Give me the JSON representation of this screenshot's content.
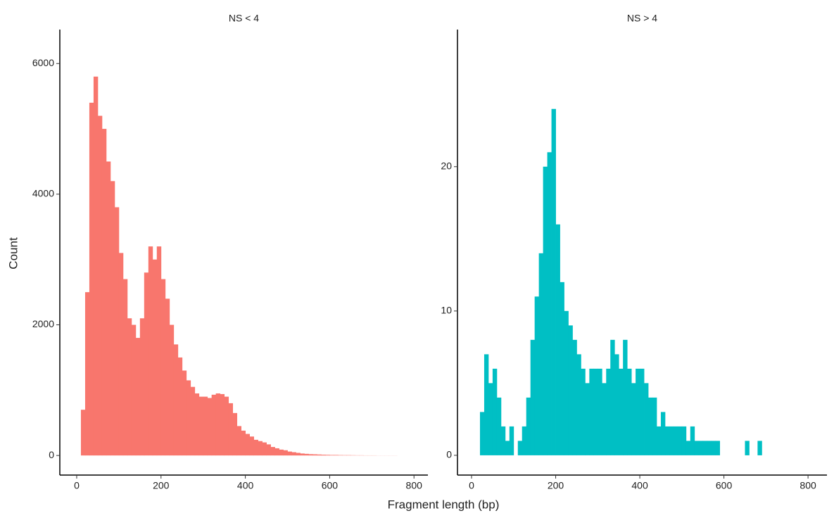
{
  "chart_data": [
    {
      "type": "histogram",
      "title": "NS < 4",
      "ylabel": "Count",
      "xlabel": "Fragment length (bp)",
      "color": "#f8766d",
      "bins": [
        10,
        20,
        30,
        40,
        50,
        60,
        70,
        80,
        90,
        100,
        110,
        120,
        130,
        140,
        150,
        160,
        170,
        180,
        190,
        200,
        210,
        220,
        230,
        240,
        250,
        260,
        270,
        280,
        290,
        300,
        310,
        320,
        330,
        340,
        350,
        360,
        370,
        380,
        390,
        400,
        410,
        420,
        430,
        440,
        450,
        460,
        470,
        480,
        490,
        500,
        510,
        520,
        530,
        540,
        550,
        560,
        570,
        580,
        590,
        600,
        610,
        620,
        630,
        640,
        650,
        660,
        670,
        680,
        690,
        700,
        710,
        720,
        730,
        740,
        750,
        760
      ],
      "values": [
        700,
        2500,
        5400,
        5800,
        5200,
        5000,
        4500,
        4200,
        3800,
        3100,
        2700,
        2100,
        2000,
        1800,
        2100,
        2800,
        3200,
        3000,
        3200,
        2700,
        2400,
        2000,
        1700,
        1500,
        1300,
        1150,
        1050,
        950,
        900,
        900,
        880,
        930,
        950,
        940,
        900,
        800,
        650,
        450,
        380,
        330,
        290,
        240,
        220,
        200,
        170,
        130,
        110,
        90,
        80,
        60,
        50,
        40,
        30,
        25,
        20,
        18,
        15,
        12,
        10,
        8,
        8,
        6,
        5,
        5,
        4,
        3,
        3,
        2,
        2,
        2,
        1,
        1,
        1,
        1,
        1
      ],
      "xlim": [
        -40,
        833
      ],
      "ylim": [
        -300,
        6520
      ],
      "xticks": [
        0,
        200,
        400,
        600,
        800
      ],
      "yticks": [
        0,
        2000,
        4000,
        6000
      ]
    },
    {
      "type": "histogram",
      "title": "NS > 4",
      "color": "#00bfc4",
      "bins": [
        20,
        30,
        40,
        50,
        60,
        70,
        80,
        90,
        100,
        110,
        120,
        130,
        140,
        150,
        160,
        170,
        180,
        190,
        200,
        210,
        220,
        230,
        240,
        250,
        260,
        270,
        280,
        290,
        300,
        310,
        320,
        330,
        340,
        350,
        360,
        370,
        380,
        390,
        400,
        410,
        420,
        430,
        440,
        450,
        460,
        470,
        480,
        490,
        500,
        510,
        520,
        530,
        540,
        550,
        560,
        570,
        580,
        590,
        600,
        610,
        620,
        630,
        640,
        650,
        660,
        670,
        680,
        690
      ],
      "values": [
        3,
        7,
        5,
        6,
        4,
        2,
        1,
        2,
        0,
        1,
        2,
        4,
        8,
        11,
        14,
        20,
        21,
        24,
        16,
        12,
        10,
        9,
        8,
        7,
        6,
        5,
        6,
        6,
        6,
        5,
        6,
        8,
        7,
        6,
        8,
        6,
        5,
        6,
        6,
        5,
        4,
        4,
        2,
        3,
        2,
        2,
        2,
        2,
        2,
        1,
        2,
        1,
        1,
        1,
        1,
        1,
        1,
        0,
        0,
        0,
        0,
        0,
        0,
        1,
        0,
        0,
        1
      ],
      "xlim": [
        -33.5,
        845
      ],
      "ylim": [
        -1.37,
        29.5
      ],
      "xticks": [
        0,
        200,
        400,
        600,
        800
      ],
      "yticks": [
        0,
        10,
        20
      ]
    }
  ]
}
